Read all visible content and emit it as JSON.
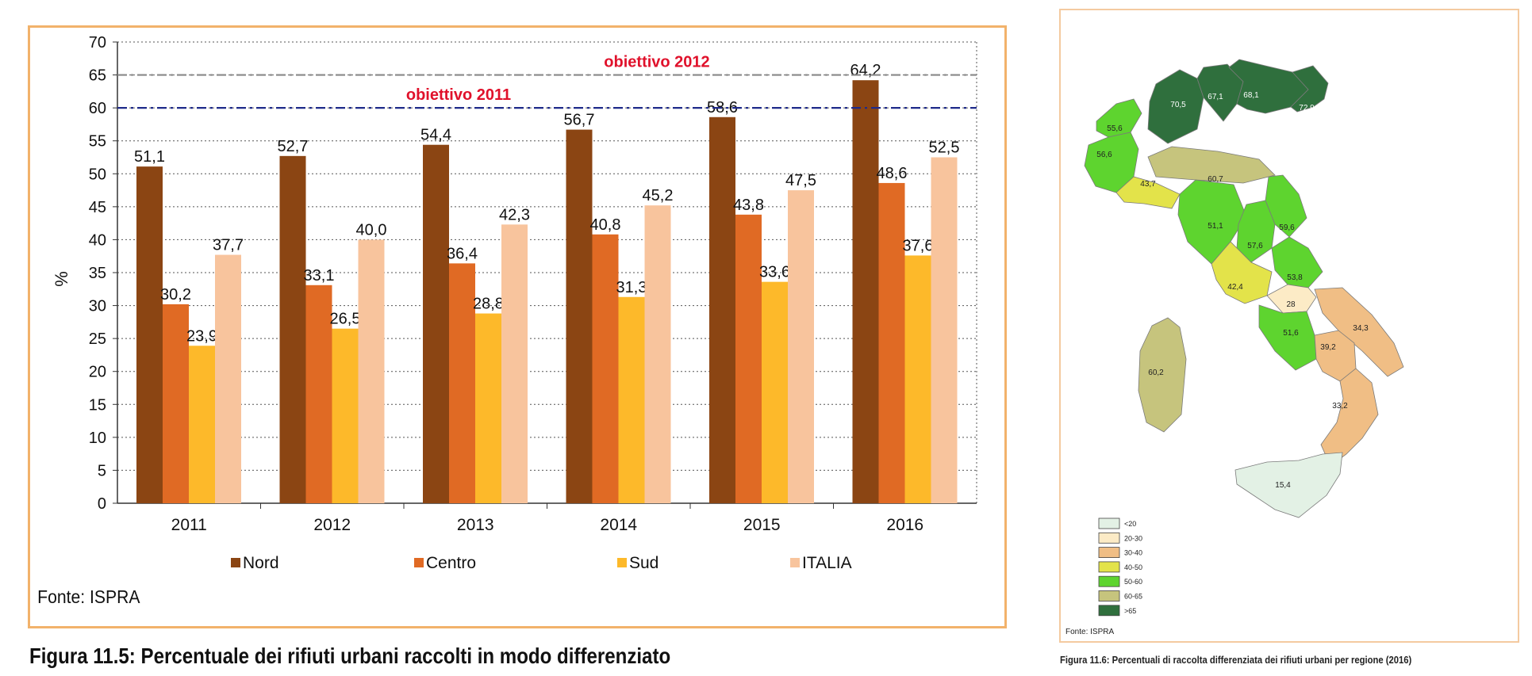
{
  "chart_data": {
    "type": "bar",
    "categories": [
      "2011",
      "2012",
      "2013",
      "2014",
      "2015",
      "2016"
    ],
    "series": [
      {
        "name": "Nord",
        "color": "#8b4513",
        "values": [
          51.1,
          52.7,
          54.4,
          56.7,
          58.6,
          64.2
        ],
        "labels": [
          "51,1",
          "52,7",
          "54,4",
          "56,7",
          "58,6",
          "64,2"
        ]
      },
      {
        "name": "Centro",
        "color": "#e06a24",
        "values": [
          30.2,
          33.1,
          36.4,
          40.8,
          43.8,
          48.6
        ],
        "labels": [
          "30,2",
          "33,1",
          "36,4",
          "40,8",
          "43,8",
          "48,6"
        ]
      },
      {
        "name": "Sud",
        "color": "#fdb92a",
        "values": [
          23.9,
          26.5,
          28.8,
          31.3,
          33.6,
          37.6
        ],
        "labels": [
          "23,9",
          "26,5",
          "28,8",
          "31,3",
          "33,6",
          "37,6"
        ]
      },
      {
        "name": "ITALIA",
        "color": "#f8c49d",
        "values": [
          37.7,
          40.0,
          42.3,
          45.2,
          47.5,
          52.5
        ],
        "labels": [
          "37,7",
          "40,0",
          "42,3",
          "45,2",
          "47,5",
          "52,5"
        ]
      }
    ],
    "ylabel": "%",
    "ylim": [
      0,
      70
    ],
    "yticks": [
      0,
      5,
      10,
      15,
      20,
      25,
      30,
      35,
      40,
      45,
      50,
      55,
      60,
      65,
      70
    ],
    "grid": true,
    "legend_position": "bottom",
    "targets": [
      {
        "label": "obiettivo 2012",
        "value": 65,
        "color": "#888888"
      },
      {
        "label": "obiettivo 2011",
        "value": 60,
        "color": "#1f2a8a"
      }
    ],
    "source": "Fonte: ISPRA"
  },
  "captions": {
    "figure_1": "Figura 11.5: Percentuale dei rifiuti urbani raccolti in modo differenziato",
    "figure_2": "Figura 11.6:  Percentuali di raccolta differenziata dei rifiuti urbani per regione (2016)"
  },
  "map": {
    "source": "Fonte: ISPRA",
    "legend": [
      {
        "label": "<20",
        "color": "#e3f1e5"
      },
      {
        "label": "20-30",
        "color": "#fcebc6"
      },
      {
        "label": "30-40",
        "color": "#f0be85"
      },
      {
        "label": "40-50",
        "color": "#e3e34a"
      },
      {
        "label": "50-60",
        "color": "#5ed42f"
      },
      {
        "label": "60-65",
        "color": "#c6c47d"
      },
      {
        "label": ">65",
        "color": "#2f6f3d"
      }
    ],
    "regions": [
      {
        "value": "70,5",
        "color": "#2f6f3d"
      },
      {
        "value": "67,1",
        "color": "#2f6f3d"
      },
      {
        "value": "68,1",
        "color": "#2f6f3d"
      },
      {
        "value": "72,9",
        "color": "#2f6f3d"
      },
      {
        "value": "55,6",
        "color": "#5ed42f"
      },
      {
        "value": "56,6",
        "color": "#5ed42f"
      },
      {
        "value": "43,7",
        "color": "#e3e34a"
      },
      {
        "value": "60,7",
        "color": "#c6c47d"
      },
      {
        "value": "51,1",
        "color": "#5ed42f"
      },
      {
        "value": "59,6",
        "color": "#5ed42f"
      },
      {
        "value": "57,6",
        "color": "#5ed42f"
      },
      {
        "value": "53,8",
        "color": "#5ed42f"
      },
      {
        "value": "42,4",
        "color": "#e3e34a"
      },
      {
        "value": "28",
        "color": "#fcebc6"
      },
      {
        "value": "51,6",
        "color": "#5ed42f"
      },
      {
        "value": "34,3",
        "color": "#f0be85"
      },
      {
        "value": "39,2",
        "color": "#f0be85"
      },
      {
        "value": "60,2",
        "color": "#c6c47d"
      },
      {
        "value": "33,2",
        "color": "#f0be85"
      },
      {
        "value": "15,4",
        "color": "#e3f1e5"
      }
    ]
  }
}
